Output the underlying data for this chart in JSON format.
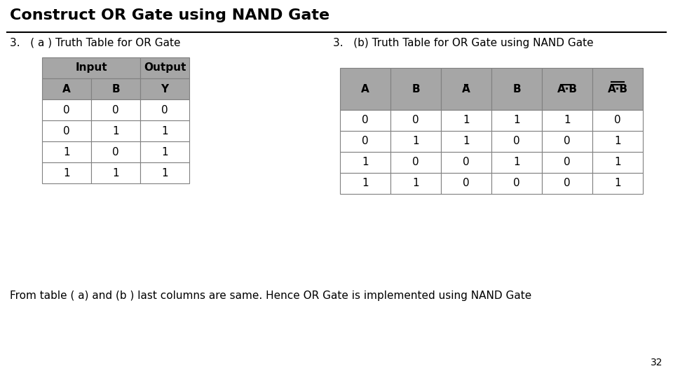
{
  "title": "Construct OR Gate using NAND Gate",
  "subtitle_a": "3.   ( a ) Truth Table for OR Gate",
  "subtitle_b": "3.   (b) Truth Table for OR Gate using NAND Gate",
  "footer": "From table ( a) and (b ) last columns are same. Hence OR Gate is implemented using NAND Gate",
  "page_number": "32",
  "bg_color": "#ffffff",
  "header_color": "#a6a6a6",
  "border_color": "#808080",
  "table_a": {
    "rows": [
      [
        0,
        0,
        0
      ],
      [
        0,
        1,
        1
      ],
      [
        1,
        0,
        1
      ],
      [
        1,
        1,
        1
      ]
    ]
  },
  "table_b": {
    "rows": [
      [
        0,
        0,
        1,
        1,
        1,
        0
      ],
      [
        0,
        1,
        1,
        0,
        0,
        1
      ],
      [
        1,
        0,
        0,
        1,
        0,
        1
      ],
      [
        1,
        1,
        0,
        0,
        0,
        1
      ]
    ]
  }
}
